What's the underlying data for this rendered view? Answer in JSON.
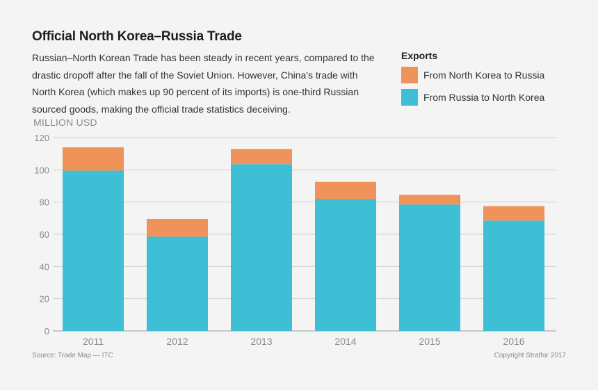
{
  "title": "Official North Korea–Russia Trade",
  "description": "Russian–North Korean Trade has been steady in recent years, compared to the drastic dropoff after the fall of the Soviet Union. However, China's trade with North Korea (which makes up 90 percent of its imports) is one-third Russian sourced goods, making the official trade statistics deceiving.",
  "legend": {
    "title": "Exports",
    "items": [
      {
        "label": "From North Korea to Russia",
        "color": "#f0935a"
      },
      {
        "label": "From Russia to North Korea",
        "color": "#3ebfd6"
      }
    ]
  },
  "source": "Source: Trade Map — ITC",
  "copyright": "Copyright Stratfor 2017",
  "chart_data": {
    "type": "bar",
    "stacked": true,
    "ylabel": "MILLION USD",
    "xlabel": "",
    "ylim": [
      0,
      120
    ],
    "yticks": [
      0,
      20,
      40,
      60,
      80,
      100,
      120
    ],
    "grid": true,
    "legend_position": "top-right",
    "categories": [
      "2011",
      "2012",
      "2013",
      "2014",
      "2015",
      "2016"
    ],
    "series": [
      {
        "name": "From Russia to North Korea",
        "color": "#3ebfd6",
        "values": [
          99.5,
          58.5,
          103.5,
          82,
          78.5,
          68.5
        ]
      },
      {
        "name": "From North Korea to Russia",
        "color": "#f0935a",
        "values": [
          14.5,
          11,
          9.5,
          10.5,
          6,
          9
        ]
      }
    ]
  }
}
